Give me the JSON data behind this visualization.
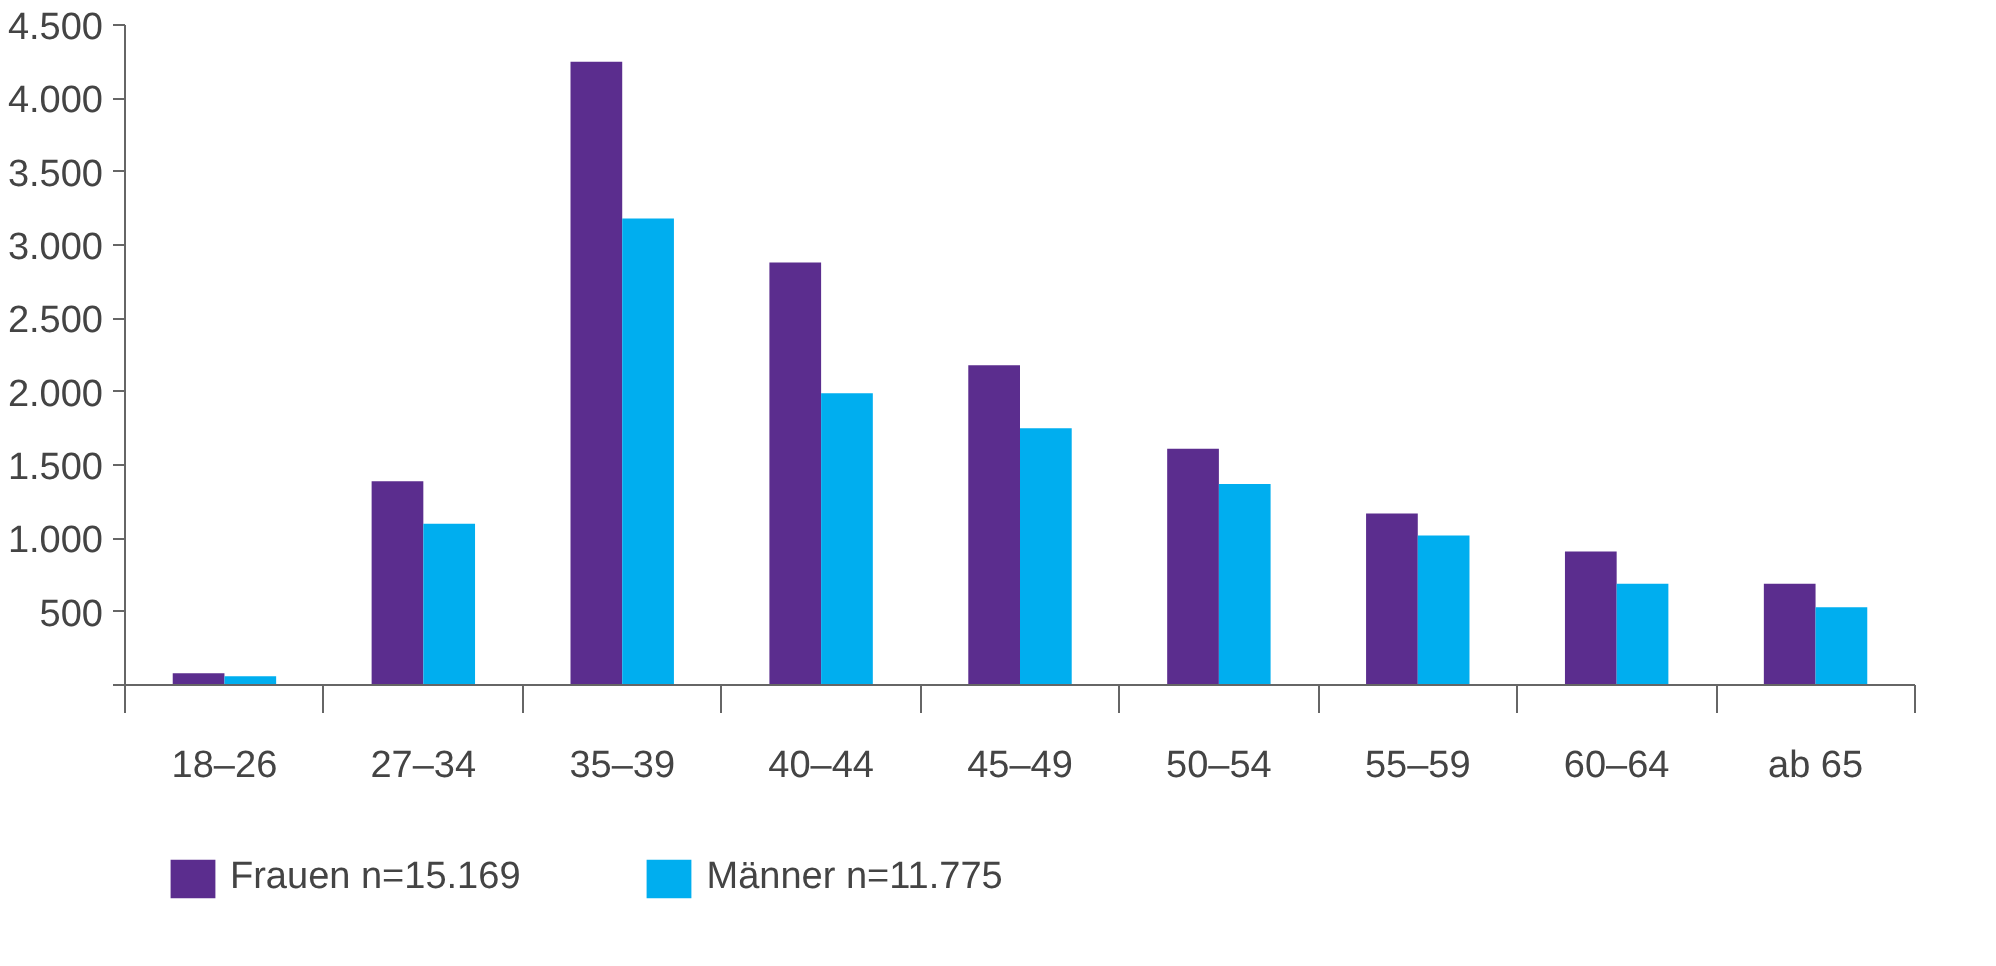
{
  "chart_data": {
    "type": "bar",
    "categories": [
      "18–26",
      "27–34",
      "35–39",
      "40–44",
      "45–49",
      "50–54",
      "55–59",
      "60–64",
      "ab 65"
    ],
    "series": [
      {
        "name": "Frauen n=15.169",
        "color": "#5b2d8e",
        "values": [
          80,
          1390,
          4250,
          2880,
          2180,
          1610,
          1170,
          910,
          690
        ]
      },
      {
        "name": "Männer n=11.775",
        "color": "#00aeef",
        "values": [
          60,
          1100,
          3180,
          1990,
          1750,
          1370,
          1020,
          690,
          530
        ]
      }
    ],
    "ylim": [
      0,
      4500
    ],
    "yticks": [
      {
        "value": 0,
        "label": null
      },
      {
        "value": 500,
        "label": "500"
      },
      {
        "value": 1000,
        "label": "1.000"
      },
      {
        "value": 1500,
        "label": "1.500"
      },
      {
        "value": 2000,
        "label": "2.000"
      },
      {
        "value": 2500,
        "label": "2.500"
      },
      {
        "value": 3000,
        "label": "3.000"
      },
      {
        "value": 3500,
        "label": "3.500"
      },
      {
        "value": 4000,
        "label": "4.000"
      },
      {
        "value": 4500,
        "label": "4.500"
      }
    ],
    "grid": false,
    "legend": "bottom"
  }
}
